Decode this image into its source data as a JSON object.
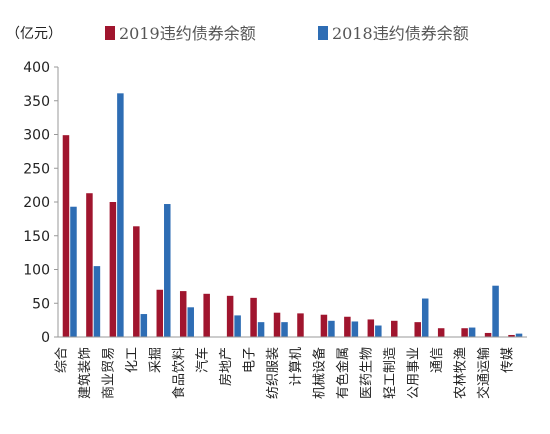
{
  "chart_data": {
    "type": "bar",
    "unit_label": "（亿元）",
    "ylim": [
      0,
      400
    ],
    "yticks": [
      "0",
      "50",
      "100",
      "150",
      "200",
      "250",
      "300",
      "350",
      "400"
    ],
    "grid": false,
    "legend_position": "top",
    "categories": [
      "综合",
      "建筑装饰",
      "商业贸易",
      "化工",
      "采掘",
      "食品饮料",
      "汽车",
      "房地产",
      "电子",
      "纺织服装",
      "计算机",
      "机械设备",
      "有色金属",
      "医药生物",
      "轻工制造",
      "公用事业",
      "通信",
      "农林牧渔",
      "交通运输",
      "传媒"
    ],
    "series": [
      {
        "name": "2019违约债券余额",
        "color": "#A0152E",
        "values": [
          299,
          213,
          200,
          164,
          70,
          68,
          64,
          61,
          58,
          36,
          35,
          33,
          30,
          26,
          24,
          22,
          13,
          13,
          6,
          3
        ]
      },
      {
        "name": "2018违约债券余额",
        "color": "#2E6DB4",
        "values": [
          193,
          105,
          361,
          34,
          197,
          44,
          0,
          32,
          22,
          22,
          0,
          24,
          23,
          17,
          0,
          57,
          0,
          14,
          76,
          5
        ]
      }
    ]
  }
}
